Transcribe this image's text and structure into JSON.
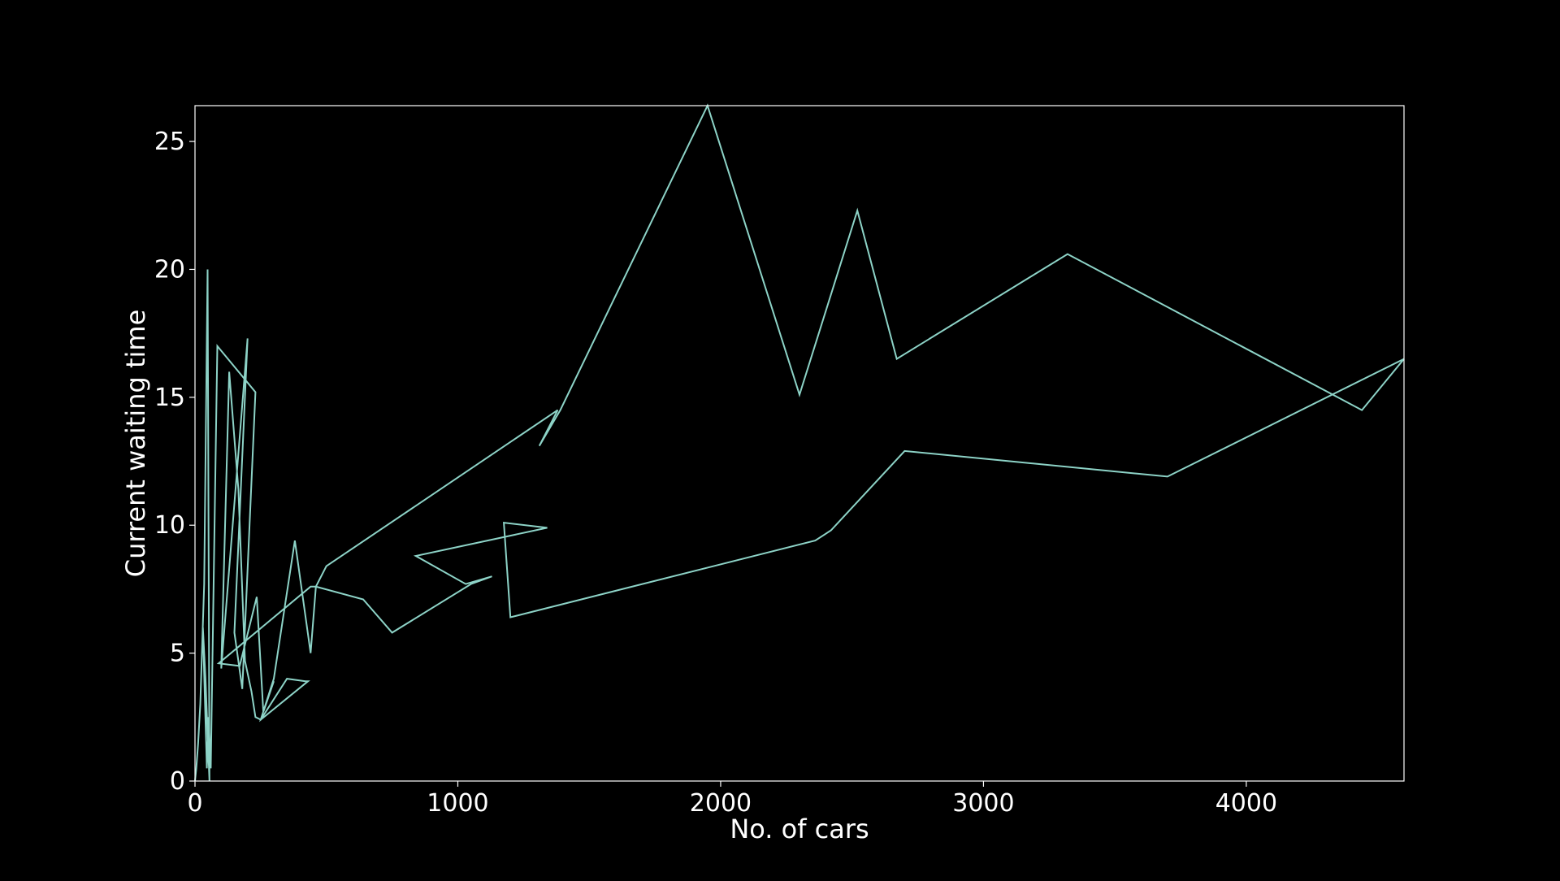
{
  "chart_data": {
    "type": "line",
    "title": "",
    "xlabel": "No. of cars",
    "ylabel": "Current waiting time",
    "xlim": [
      0,
      4600
    ],
    "ylim": [
      0,
      26.4
    ],
    "xticks": [
      0,
      1000,
      2000,
      3000,
      4000
    ],
    "yticks": [
      0,
      5,
      10,
      15,
      20,
      25
    ],
    "grid": false,
    "legend": "none",
    "colors": {
      "background": "#000000",
      "line": "#8dd3c7",
      "axes": "#ffffff",
      "text": "#ffffff"
    },
    "series": [
      {
        "x": [
          0,
          5,
          12,
          20,
          35,
          48,
          55,
          40,
          30,
          45,
          52,
          60,
          85,
          230,
          180,
          150,
          200,
          100,
          130,
          165,
          190,
          215,
          230,
          250,
          300,
          350,
          420,
          430,
          250,
          300,
          380,
          440,
          460,
          500,
          1380,
          1310,
          1390,
          1950,
          2300,
          2520,
          2670,
          3320,
          4440,
          4600,
          3700,
          2700,
          2420,
          2360,
          1200,
          1175,
          1340,
          840,
          1030,
          1130,
          1050,
          750,
          640,
          460,
          440,
          90,
          170,
          235,
          260,
          300
        ],
        "y": [
          0,
          0.5,
          1.5,
          3,
          7.7,
          20,
          0,
          4,
          6,
          0.5,
          2.5,
          0.5,
          17,
          15.2,
          3.6,
          5.8,
          17.3,
          4.4,
          16,
          11.4,
          4.7,
          3.5,
          2.5,
          2.4,
          3.2,
          4.0,
          3.9,
          3.9,
          2.4,
          4.0,
          9.4,
          5.0,
          7.6,
          8.4,
          14.5,
          13.1,
          14.5,
          26.4,
          15.1,
          22.3,
          16.5,
          20.6,
          14.5,
          16.5,
          11.9,
          12.9,
          9.8,
          9.4,
          6.4,
          10.1,
          9.9,
          8.8,
          7.7,
          8.0,
          7.7,
          5.8,
          7.1,
          7.6,
          7.6,
          4.6,
          4.5,
          7.2,
          2.7,
          3.9
        ]
      }
    ]
  }
}
